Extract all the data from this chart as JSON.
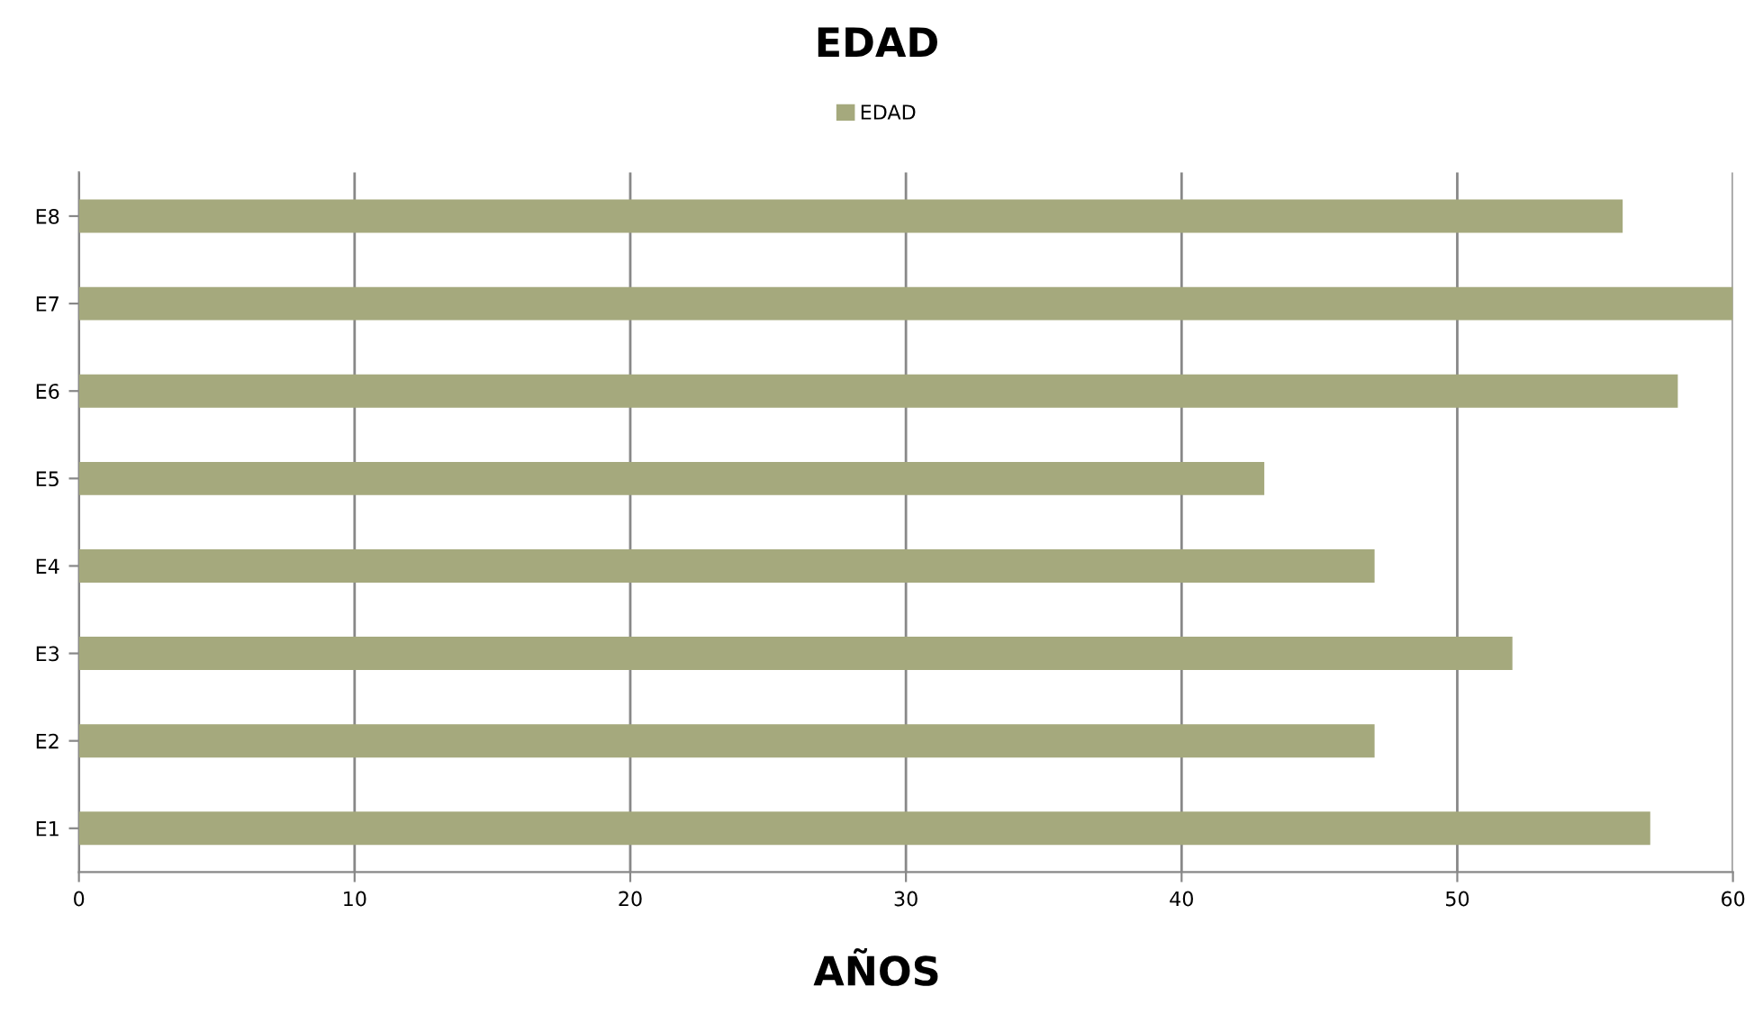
{
  "chart_data": {
    "type": "bar",
    "orientation": "horizontal",
    "title": "EDAD",
    "xlabel": "AÑOS",
    "categories": [
      "E8",
      "E7",
      "E6",
      "E5",
      "E4",
      "E3",
      "E2",
      "E1"
    ],
    "series": [
      {
        "name": "EDAD",
        "color": "#a5a97d",
        "values": [
          56,
          60,
          58,
          43,
          47,
          52,
          47,
          57
        ]
      }
    ],
    "xlim": [
      0,
      60
    ],
    "xticks": [
      0,
      10,
      20,
      30,
      40,
      50,
      60
    ],
    "grid": "x",
    "legend": "top"
  }
}
